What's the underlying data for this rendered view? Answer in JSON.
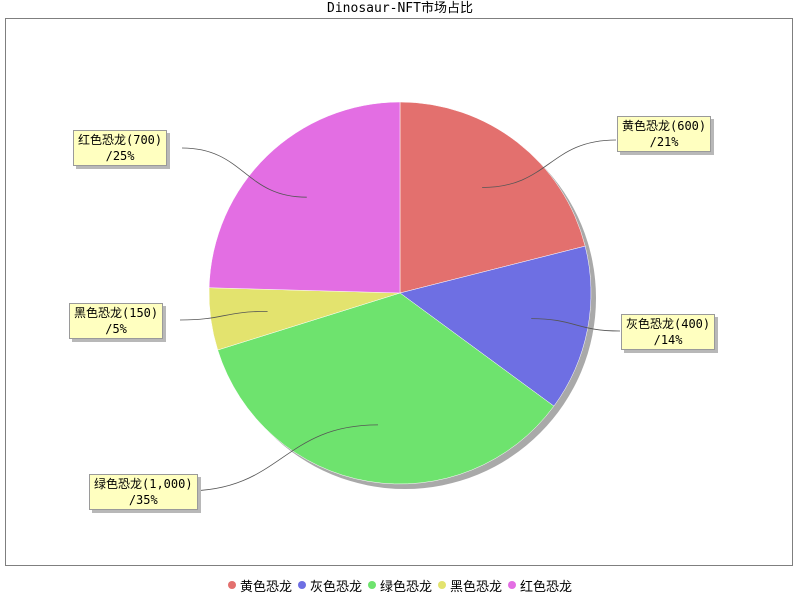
{
  "chart_data": {
    "type": "pie",
    "title": "Dinosaur-NFT市场占比",
    "slices": [
      {
        "name": "黄色恐龙",
        "value": 600,
        "value_label": "600",
        "percent_label": "21%",
        "color": "#e3706e"
      },
      {
        "name": "灰色恐龙",
        "value": 400,
        "value_label": "400",
        "percent_label": "14%",
        "color": "#6e6fe3"
      },
      {
        "name": "绿色恐龙",
        "value": 1000,
        "value_label": "1,000",
        "percent_label": "35%",
        "color": "#6ee36e"
      },
      {
        "name": "黑色恐龙",
        "value": 150,
        "value_label": "150",
        "percent_label": "5%",
        "color": "#e3e36e"
      },
      {
        "name": "红色恐龙",
        "value": 700,
        "value_label": "700",
        "percent_label": "25%",
        "color": "#e36ee3"
      }
    ],
    "legend_position": "bottom"
  }
}
